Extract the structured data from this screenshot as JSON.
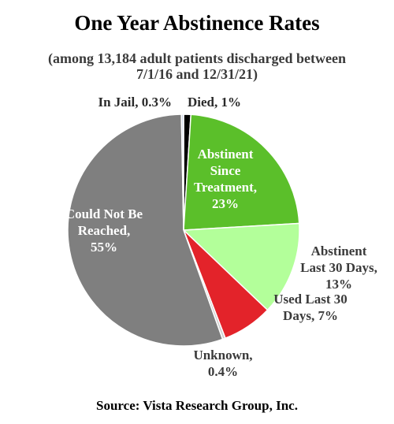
{
  "title": "One Year Abstinence Rates",
  "subtitle_lines": [
    "(among 13,184 adult patients discharged between",
    "7/1/16 and 12/31/21)"
  ],
  "source": "Source:  Vista Research Group, Inc.",
  "chart_data": {
    "type": "pie",
    "title": "One Year Abstinence Rates",
    "slices": [
      {
        "key": "died",
        "label_lines": [
          "Died, 1%"
        ],
        "value": 1,
        "color": "#000000",
        "label_color": "#2a2a2a"
      },
      {
        "key": "abstinent-since-treatment",
        "label_lines": [
          "Abstinent",
          "Since",
          "Treatment,",
          "23%"
        ],
        "value": 23,
        "color": "#5bbf2a",
        "label_color": "#ffffff"
      },
      {
        "key": "abstinent-last-30-days",
        "label_lines": [
          "Abstinent",
          "Last 30 Days,",
          "13%"
        ],
        "value": 13,
        "color": "#b3ff9a",
        "label_color": "#3a3a3a"
      },
      {
        "key": "used-last-30-days",
        "label_lines": [
          "Used Last 30",
          "Days, 7%"
        ],
        "value": 7,
        "color": "#e3232a",
        "label_color": "#3a3a3a"
      },
      {
        "key": "unknown",
        "label_lines": [
          "Unknown,",
          "0.4%"
        ],
        "value": 0.4,
        "color": "#d0d0d0",
        "label_color": "#3a3a3a"
      },
      {
        "key": "could-not-be-reached",
        "label_lines": [
          "Could Not Be",
          "Reached,",
          "55%"
        ],
        "value": 55,
        "color": "#7f7f7f",
        "label_color": "#ffffff"
      },
      {
        "key": "in-jail",
        "label_lines": [
          "In Jail, 0.3%"
        ],
        "value": 0.3,
        "color": "#cfd8ea",
        "label_color": "#2a2a2a"
      }
    ]
  }
}
